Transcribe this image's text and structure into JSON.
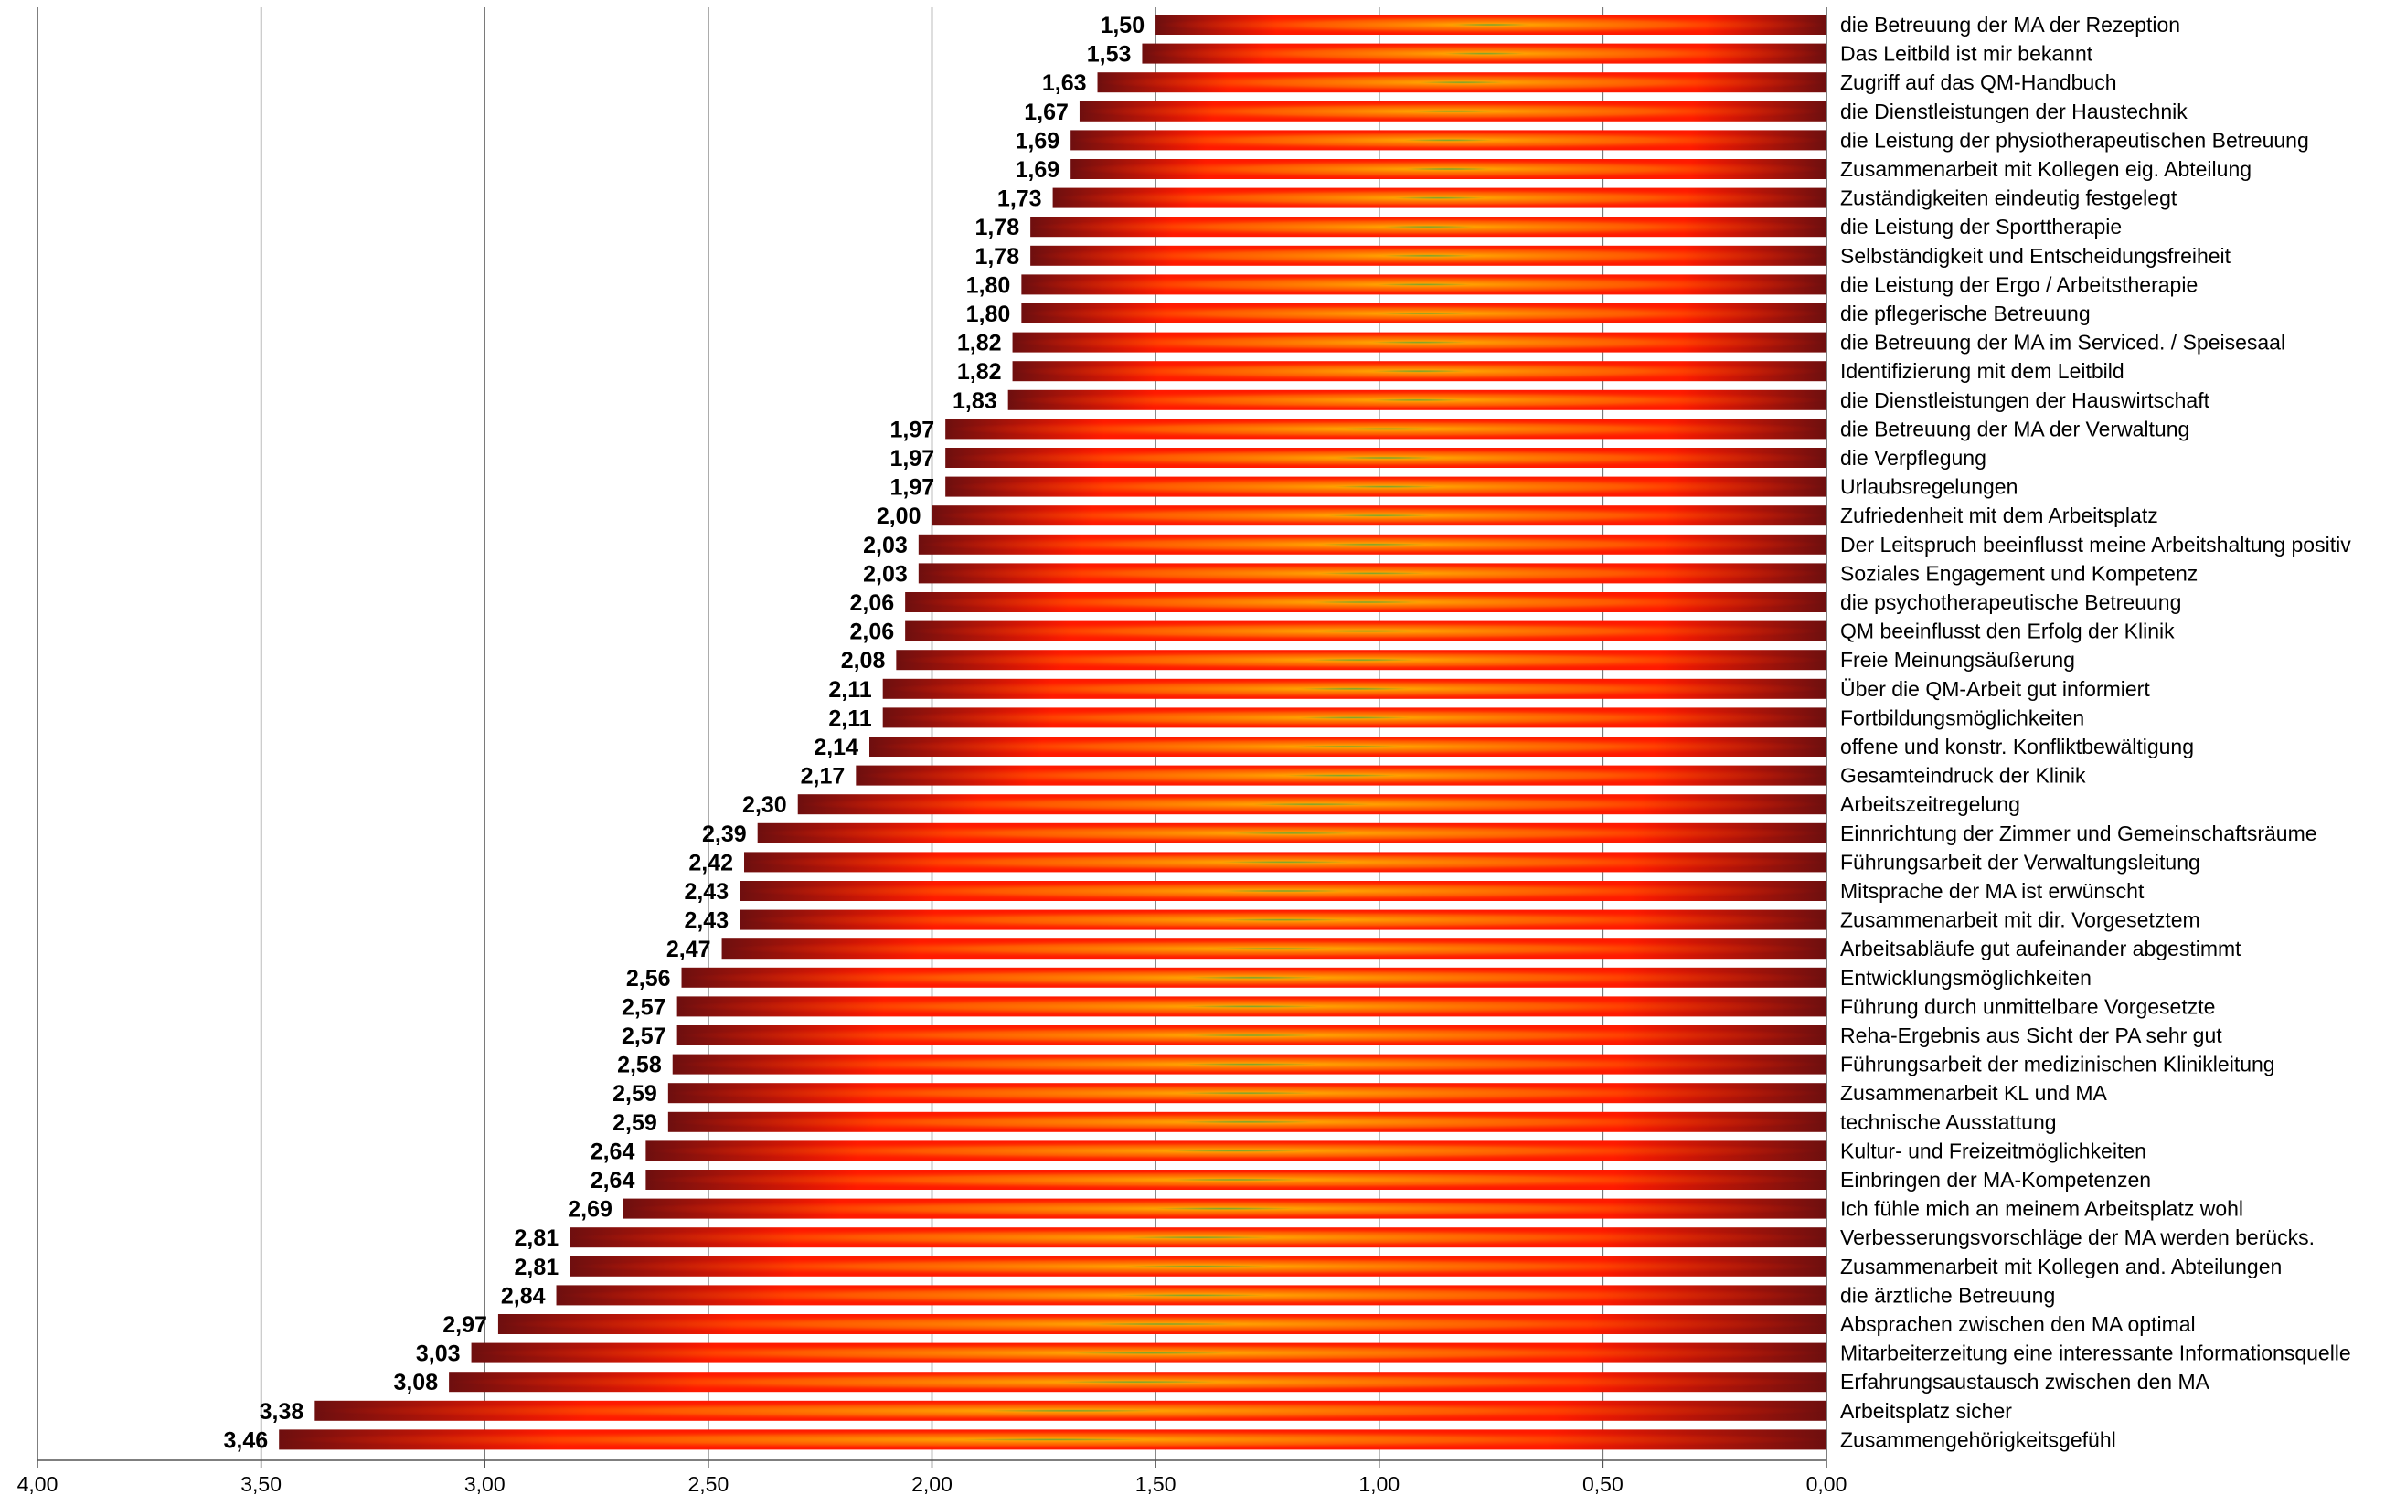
{
  "chart_data": {
    "type": "bar",
    "orientation": "horizontal",
    "x_axis_reversed": true,
    "xlim": [
      0,
      4
    ],
    "xticks": [
      "4,00",
      "3,50",
      "3,00",
      "2,50",
      "2,00",
      "1,50",
      "1,00",
      "0,50",
      "0,00"
    ],
    "xtick_values": [
      4.0,
      3.5,
      3.0,
      2.5,
      2.0,
      1.5,
      1.0,
      0.5,
      0.0
    ],
    "grid": "vertical",
    "categories": [
      "die Betreuung der MA der Rezeption",
      "Das Leitbild ist mir bekannt",
      "Zugriff auf das QM-Handbuch",
      "die Dienstleistungen der Haustechnik",
      "die Leistung der physiotherapeutischen Betreuung",
      "Zusammenarbeit mit Kollegen eig. Abteilung",
      "Zuständigkeiten eindeutig festgelegt",
      "die Leistung der Sporttherapie",
      "Selbständigkeit und Entscheidungsfreiheit",
      "die Leistung der Ergo / Arbeitstherapie",
      "die pflegerische Betreuung",
      "die Betreuung der MA im Serviced. / Speisesaal",
      "Identifizierung mit dem Leitbild",
      "die Dienstleistungen der Hauswirtschaft",
      "die Betreuung der MA der Verwaltung",
      "die Verpflegung",
      "Urlaubsregelungen",
      "Zufriedenheit mit dem Arbeitsplatz",
      "Der Leitspruch beeinflusst meine Arbeitshaltung positiv",
      "Soziales Engagement und Kompetenz",
      "die psychotherapeutische Betreuung",
      "QM beeinflusst den Erfolg der Klinik",
      "Freie Meinungsäußerung",
      "Über die QM-Arbeit gut informiert",
      "Fortbildungsmöglichkeiten",
      "offene und konstr. Konfliktbewältigung",
      "Gesamteindruck der Klinik",
      "Arbeitszeitregelung",
      "Einnrichtung der Zimmer und Gemeinschaftsräume",
      "Führungsarbeit der Verwaltungsleitung",
      "Mitsprache der MA ist erwünscht",
      "Zusammenarbeit mit dir. Vorgesetztem",
      "Arbeitsabläufe gut aufeinander abgestimmt",
      "Entwicklungsmöglichkeiten",
      "Führung durch unmittelbare Vorgesetzte",
      "Reha-Ergebnis aus Sicht der PA sehr gut",
      "Führungsarbeit der medizinischen Klinikleitung",
      "Zusammenarbeit KL und MA",
      "technische Ausstattung",
      "Kultur- und Freizeitmöglichkeiten",
      "Einbringen der MA-Kompetenzen",
      "Ich fühle mich an meinem Arbeitsplatz wohl",
      "Verbesserungsvorschläge der MA werden berücks.",
      "Zusammenarbeit mit Kollegen and. Abteilungen",
      "die ärztliche Betreuung",
      "Absprachen zwischen den MA optimal",
      "Mitarbeiterzeitung eine interessante Informationsquelle",
      "Erfahrungsaustausch zwischen den MA",
      "Arbeitsplatz sicher",
      "Zusammengehörigkeitsgefühl"
    ],
    "values": [
      1.5,
      1.53,
      1.63,
      1.67,
      1.69,
      1.69,
      1.73,
      1.78,
      1.78,
      1.8,
      1.8,
      1.82,
      1.82,
      1.83,
      1.97,
      1.97,
      1.97,
      2.0,
      2.03,
      2.03,
      2.06,
      2.06,
      2.08,
      2.11,
      2.11,
      2.14,
      2.17,
      2.3,
      2.39,
      2.42,
      2.43,
      2.43,
      2.47,
      2.56,
      2.57,
      2.57,
      2.58,
      2.59,
      2.59,
      2.64,
      2.64,
      2.69,
      2.81,
      2.81,
      2.84,
      2.97,
      3.03,
      3.08,
      3.38,
      3.46
    ],
    "value_labels": [
      "1,50",
      "1,53",
      "1,63",
      "1,67",
      "1,69",
      "1,69",
      "1,73",
      "1,78",
      "1,78",
      "1,80",
      "1,80",
      "1,82",
      "1,82",
      "1,83",
      "1,97",
      "1,97",
      "1,97",
      "2,00",
      "2,03",
      "2,03",
      "2,06",
      "2,06",
      "2,08",
      "2,11",
      "2,11",
      "2,14",
      "2,17",
      "2,30",
      "2,39",
      "2,42",
      "2,43",
      "2,43",
      "2,47",
      "2,56",
      "2,57",
      "2,57",
      "2,58",
      "2,59",
      "2,59",
      "2,64",
      "2,64",
      "2,69",
      "2,81",
      "2,81",
      "2,84",
      "2,97",
      "3,03",
      "3,08",
      "3,38",
      "3,46"
    ],
    "colors": {
      "bar_edge": "#6e0f0f",
      "bar_red": "#ff1a00",
      "bar_orange": "#ffa500",
      "bar_green": "#5ab53a",
      "grid": "#7a7a7a",
      "axis": "#555555"
    }
  }
}
